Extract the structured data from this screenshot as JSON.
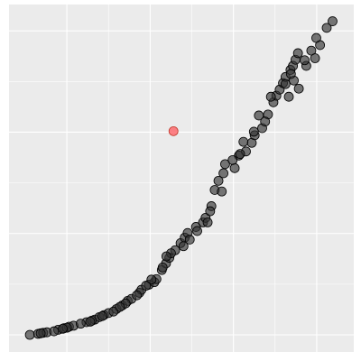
{
  "chart_data": {
    "type": "scatter",
    "title": "",
    "xlabel": "",
    "ylabel": "",
    "xlim": [
      0,
      7.5
    ],
    "ylim": [
      0,
      6.2
    ],
    "grid": true,
    "x_ticks": [
      1,
      3,
      5,
      7
    ],
    "y_ticks": [
      0,
      2,
      4,
      6
    ],
    "series": [
      {
        "color": "#333333",
        "points": [
          [
            0.11,
            0.0
          ],
          [
            0.31,
            0.02
          ],
          [
            0.43,
            0.04
          ],
          [
            0.52,
            0.05
          ],
          [
            0.79,
            0.1
          ],
          [
            0.93,
            0.13
          ],
          [
            1.05,
            0.16
          ],
          [
            1.16,
            0.18
          ],
          [
            1.47,
            0.25
          ],
          [
            1.67,
            0.3
          ],
          [
            1.78,
            0.35
          ],
          [
            1.89,
            0.39
          ],
          [
            2.0,
            0.43
          ],
          [
            2.19,
            0.51
          ],
          [
            2.33,
            0.58
          ],
          [
            2.46,
            0.67
          ],
          [
            2.55,
            0.71
          ],
          [
            2.74,
            0.83
          ],
          [
            2.79,
            0.89
          ],
          [
            2.97,
            0.99
          ],
          [
            3.1,
            1.04
          ],
          [
            3.15,
            1.1
          ],
          [
            3.28,
            1.28
          ],
          [
            3.38,
            1.41
          ],
          [
            3.46,
            1.52
          ],
          [
            3.6,
            1.67
          ],
          [
            3.73,
            1.81
          ],
          [
            3.83,
            1.92
          ],
          [
            3.9,
            2.01
          ],
          [
            4.1,
            2.13
          ],
          [
            4.27,
            2.22
          ],
          [
            4.33,
            2.31
          ],
          [
            4.47,
            2.54
          ],
          [
            4.55,
            2.86
          ],
          [
            4.64,
            3.04
          ],
          [
            4.76,
            3.19
          ],
          [
            4.8,
            3.37
          ],
          [
            5.03,
            3.29
          ],
          [
            5.13,
            3.54
          ],
          [
            5.3,
            3.62
          ],
          [
            5.44,
            3.79
          ],
          [
            5.51,
            3.94
          ],
          [
            5.69,
            4.08
          ],
          [
            5.83,
            4.35
          ],
          [
            5.96,
            4.59
          ],
          [
            6.03,
            4.72
          ],
          [
            6.11,
            4.84
          ],
          [
            6.19,
            4.97
          ],
          [
            6.25,
            5.09
          ],
          [
            6.37,
            5.23
          ],
          [
            6.43,
            5.31
          ],
          [
            6.49,
            5.43
          ],
          [
            6.55,
            5.56
          ],
          [
            6.57,
            4.86
          ],
          [
            6.25,
            4.95
          ],
          [
            6.75,
            5.31
          ],
          [
            6.87,
            5.61
          ],
          [
            6.96,
            5.46
          ],
          [
            7.24,
            6.06
          ],
          [
            7.08,
            5.72
          ],
          [
            6.99,
            5.86
          ],
          [
            6.71,
            5.42
          ],
          [
            6.45,
            5.02
          ],
          [
            6.33,
            4.7
          ],
          [
            5.9,
            4.7
          ],
          [
            5.61,
            4.33
          ],
          [
            5.49,
            4.01
          ],
          [
            5.24,
            3.81
          ],
          [
            4.98,
            3.45
          ],
          [
            4.72,
            2.83
          ],
          [
            4.38,
            2.22
          ],
          [
            4.13,
            2.05
          ],
          [
            3.95,
            1.88
          ],
          [
            3.8,
            1.75
          ],
          [
            3.5,
            1.61
          ],
          [
            3.39,
            1.55
          ],
          [
            3.03,
            1.09
          ],
          [
            2.9,
            0.97
          ],
          [
            2.68,
            0.78
          ],
          [
            2.41,
            0.62
          ],
          [
            2.12,
            0.46
          ],
          [
            1.85,
            0.37
          ],
          [
            1.6,
            0.28
          ],
          [
            1.33,
            0.22
          ],
          [
            1.0,
            0.14
          ],
          [
            0.69,
            0.07
          ],
          [
            0.37,
            0.03
          ],
          [
            0.9,
            0.12
          ],
          [
            1.56,
            0.26
          ],
          [
            2.27,
            0.55
          ],
          [
            3.3,
            1.33
          ],
          [
            4.44,
            2.44
          ],
          [
            5.16,
            3.57
          ],
          [
            5.76,
            4.21
          ],
          [
            6.38,
            5.15
          ],
          [
            7.38,
            6.19
          ]
        ]
      },
      {
        "color": "#ff5a5f",
        "points": [
          [
            3.56,
            4.02
          ]
        ]
      }
    ]
  }
}
